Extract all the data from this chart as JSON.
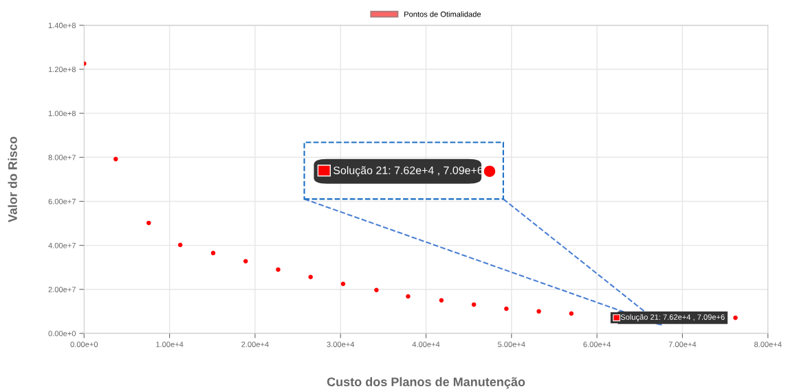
{
  "chart_data": {
    "type": "scatter",
    "xlabel": "Custo dos Planos de Manutenção",
    "ylabel": "Valor do Risco",
    "x": [
      0,
      3700,
      7560,
      11250,
      15100,
      18900,
      22700,
      26500,
      30300,
      34200,
      37900,
      41800,
      45600,
      49400,
      53200,
      57000,
      60800,
      64600,
      68400,
      72300,
      76200
    ],
    "series": [
      {
        "name": "Pontos de Otimalidade",
        "color": "#ff0000",
        "values": [
          122600000,
          79200000,
          50200000,
          40200000,
          36500000,
          32800000,
          29000000,
          25600000,
          22500000,
          19700000,
          16800000,
          15000000,
          13100000,
          11200000,
          10000000,
          9000000,
          null,
          null,
          null,
          null,
          7090000
        ]
      }
    ],
    "xlim": [
      0,
      80000
    ],
    "ylim": [
      0,
      140000000
    ],
    "xticks": [
      {
        "value": 0,
        "label": "0.00e+0"
      },
      {
        "value": 10000,
        "label": "1.00e+4"
      },
      {
        "value": 20000,
        "label": "2.00e+4"
      },
      {
        "value": 30000,
        "label": "3.00e+4"
      },
      {
        "value": 40000,
        "label": "4.00e+4"
      },
      {
        "value": 50000,
        "label": "5.00e+4"
      },
      {
        "value": 60000,
        "label": "6.00e+4"
      },
      {
        "value": 70000,
        "label": "7.00e+4"
      },
      {
        "value": 80000,
        "label": "8.00e+4"
      }
    ],
    "yticks": [
      {
        "value": 0,
        "label": "0.00e+0"
      },
      {
        "value": 20000000,
        "label": "2.00e+7"
      },
      {
        "value": 40000000,
        "label": "4.00e+7"
      },
      {
        "value": 60000000,
        "label": "6.00e+7"
      },
      {
        "value": 80000000,
        "label": "8.00e+7"
      },
      {
        "value": 100000000,
        "label": "1.00e+8"
      },
      {
        "value": 120000000,
        "label": "1.20e+8"
      },
      {
        "value": 140000000,
        "label": "1.40e+8"
      }
    ],
    "annotations": [
      {
        "text": "Solução 21: 7.62e+4 , 7.09e+6",
        "x": 76200,
        "y": 7090000
      },
      "Solução 21: 7.62e+4 , 7.09e+6"
    ],
    "grid": true,
    "legend": "top",
    "marker": "circle"
  }
}
